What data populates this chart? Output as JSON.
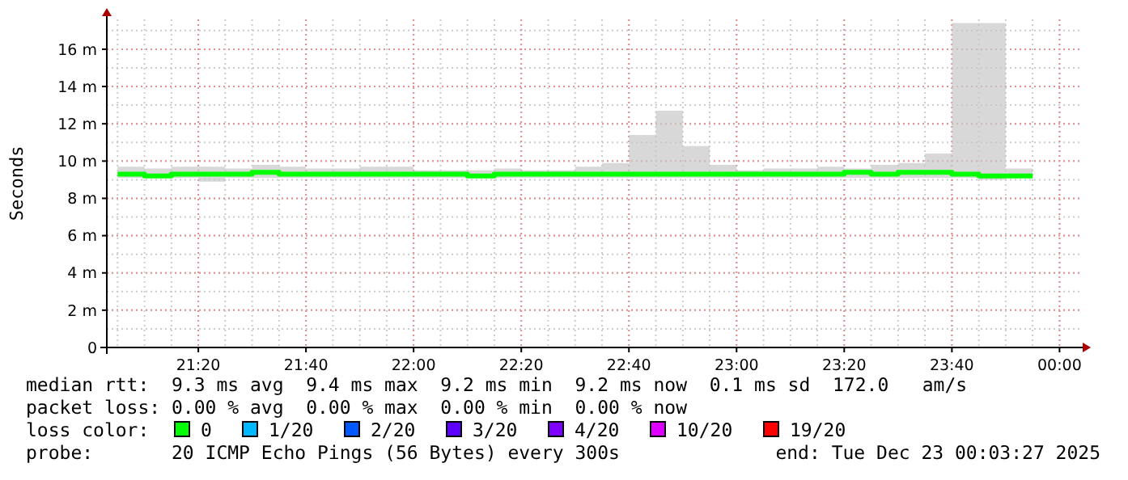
{
  "chart_data": {
    "type": "step",
    "ylabel": "Seconds",
    "legend_title": "loss color:",
    "legend": "bottom",
    "grid": true,
    "x": [
      "2025-12-22T21:05",
      "2025-12-22T21:10",
      "2025-12-22T21:15",
      "2025-12-22T21:20",
      "2025-12-22T21:25",
      "2025-12-22T21:30",
      "2025-12-22T21:35",
      "2025-12-22T21:40",
      "2025-12-22T21:45",
      "2025-12-22T21:50",
      "2025-12-22T21:55",
      "2025-12-22T22:00",
      "2025-12-22T22:05",
      "2025-12-22T22:10",
      "2025-12-22T22:15",
      "2025-12-22T22:20",
      "2025-12-22T22:25",
      "2025-12-22T22:30",
      "2025-12-22T22:35",
      "2025-12-22T22:40",
      "2025-12-22T22:45",
      "2025-12-22T22:50",
      "2025-12-22T22:55",
      "2025-12-22T23:00",
      "2025-12-22T23:05",
      "2025-12-22T23:10",
      "2025-12-22T23:15",
      "2025-12-22T23:20",
      "2025-12-22T23:25",
      "2025-12-22T23:30",
      "2025-12-22T23:35",
      "2025-12-22T23:40",
      "2025-12-22T23:45",
      "2025-12-22T23:50",
      "2025-12-22T23:55"
    ],
    "xlim": [
      "2025-12-22T21:03",
      "2025-12-23T00:04"
    ],
    "xticks": [
      {
        "value": "2025-12-22T21:20",
        "label": "21:20"
      },
      {
        "value": "2025-12-22T21:40",
        "label": "21:40"
      },
      {
        "value": "2025-12-22T22:00",
        "label": "22:00"
      },
      {
        "value": "2025-12-22T22:20",
        "label": "22:20"
      },
      {
        "value": "2025-12-22T22:40",
        "label": "22:40"
      },
      {
        "value": "2025-12-22T23:00",
        "label": "23:00"
      },
      {
        "value": "2025-12-22T23:20",
        "label": "23:20"
      },
      {
        "value": "2025-12-22T23:40",
        "label": "23:40"
      },
      {
        "value": "2025-12-23T00:00",
        "label": "00:00"
      }
    ],
    "ylim": [
      0,
      17.6
    ],
    "yticks": [
      {
        "value": 0,
        "label": "0"
      },
      {
        "value": 2,
        "label": "2 m"
      },
      {
        "value": 4,
        "label": "4 m"
      },
      {
        "value": 6,
        "label": "6 m"
      },
      {
        "value": 8,
        "label": "8 m"
      },
      {
        "value": 10,
        "label": "10 m"
      },
      {
        "value": 12,
        "label": "12 m"
      },
      {
        "value": 14,
        "label": "14 m"
      },
      {
        "value": 16,
        "label": "16 m"
      }
    ],
    "series": [
      {
        "name": "0",
        "color": "#00ff00",
        "values": [
          9.3,
          9.3,
          9.2,
          9.3,
          9.3,
          9.3,
          9.4,
          9.3,
          9.3,
          9.3,
          9.3,
          9.3,
          9.3,
          9.3,
          9.2,
          9.3,
          9.3,
          9.3,
          9.3,
          9.3,
          9.3,
          9.3,
          9.3,
          9.3,
          9.3,
          9.3,
          9.3,
          9.3,
          9.4,
          9.3,
          9.4,
          9.4,
          9.3,
          9.2,
          9.2
        ],
        "lower": [
          9.1,
          9.1,
          9.1,
          9.1,
          8.9,
          9.1,
          9.1,
          9.1,
          9.1,
          9.1,
          9.1,
          9.1,
          9.1,
          9.1,
          9.1,
          9.1,
          9.1,
          9.1,
          9.1,
          9.1,
          9.1,
          9.1,
          9.1,
          9.1,
          9.1,
          9.1,
          9.1,
          9.1,
          9.1,
          9.1,
          9.1,
          9.1,
          9.1,
          9.0,
          9.1
        ],
        "upper": [
          9.9,
          9.7,
          9.6,
          9.7,
          9.7,
          9.6,
          9.8,
          9.7,
          9.6,
          9.6,
          9.7,
          9.7,
          9.5,
          9.5,
          9.5,
          9.6,
          9.5,
          9.5,
          9.7,
          9.9,
          11.4,
          12.7,
          10.8,
          9.8,
          9.5,
          9.6,
          9.6,
          9.7,
          9.6,
          9.8,
          9.9,
          10.4,
          17.4,
          17.4,
          9.6
        ]
      },
      {
        "name": "1/20",
        "color": "#00b8ff",
        "values": [
          null,
          null,
          null,
          null,
          null,
          null,
          null,
          null,
          null,
          null,
          null,
          null,
          null,
          null,
          null,
          null,
          null,
          null,
          null,
          null,
          null,
          null,
          null,
          null,
          null,
          null,
          null,
          null,
          null,
          null,
          null,
          null,
          null,
          null,
          null
        ]
      },
      {
        "name": "2/20",
        "color": "#0059ff",
        "values": [
          null,
          null,
          null,
          null,
          null,
          null,
          null,
          null,
          null,
          null,
          null,
          null,
          null,
          null,
          null,
          null,
          null,
          null,
          null,
          null,
          null,
          null,
          null,
          null,
          null,
          null,
          null,
          null,
          null,
          null,
          null,
          null,
          null,
          null,
          null
        ]
      },
      {
        "name": "3/20",
        "color": "#5e00ff",
        "values": [
          null,
          null,
          null,
          null,
          null,
          null,
          null,
          null,
          null,
          null,
          null,
          null,
          null,
          null,
          null,
          null,
          null,
          null,
          null,
          null,
          null,
          null,
          null,
          null,
          null,
          null,
          null,
          null,
          null,
          null,
          null,
          null,
          null,
          null,
          null
        ]
      },
      {
        "name": "4/20",
        "color": "#7e00ff",
        "values": [
          null,
          null,
          null,
          null,
          null,
          null,
          null,
          null,
          null,
          null,
          null,
          null,
          null,
          null,
          null,
          null,
          null,
          null,
          null,
          null,
          null,
          null,
          null,
          null,
          null,
          null,
          null,
          null,
          null,
          null,
          null,
          null,
          null,
          null,
          null
        ]
      },
      {
        "name": "10/20",
        "color": "#dd00ff",
        "values": [
          null,
          null,
          null,
          null,
          null,
          null,
          null,
          null,
          null,
          null,
          null,
          null,
          null,
          null,
          null,
          null,
          null,
          null,
          null,
          null,
          null,
          null,
          null,
          null,
          null,
          null,
          null,
          null,
          null,
          null,
          null,
          null,
          null,
          null,
          null
        ]
      },
      {
        "name": "19/20",
        "color": "#ff0000",
        "values": [
          null,
          null,
          null,
          null,
          null,
          null,
          null,
          null,
          null,
          null,
          null,
          null,
          null,
          null,
          null,
          null,
          null,
          null,
          null,
          null,
          null,
          null,
          null,
          null,
          null,
          null,
          null,
          null,
          null,
          null,
          null,
          null,
          null,
          null,
          null
        ]
      }
    ],
    "annotations": [
      "median rtt:  9.3 ms avg  9.4 ms max  9.2 ms min  9.2 ms now  0.1 ms sd  172.0   am/s",
      "packet loss: 0.00 % avg  0.00 % max  0.00 % min  0.00 % now",
      "probe:       20 ICMP Echo Pings (56 Bytes) every 300s",
      "end: Tue Dec 23 00:03:27 2025"
    ]
  }
}
